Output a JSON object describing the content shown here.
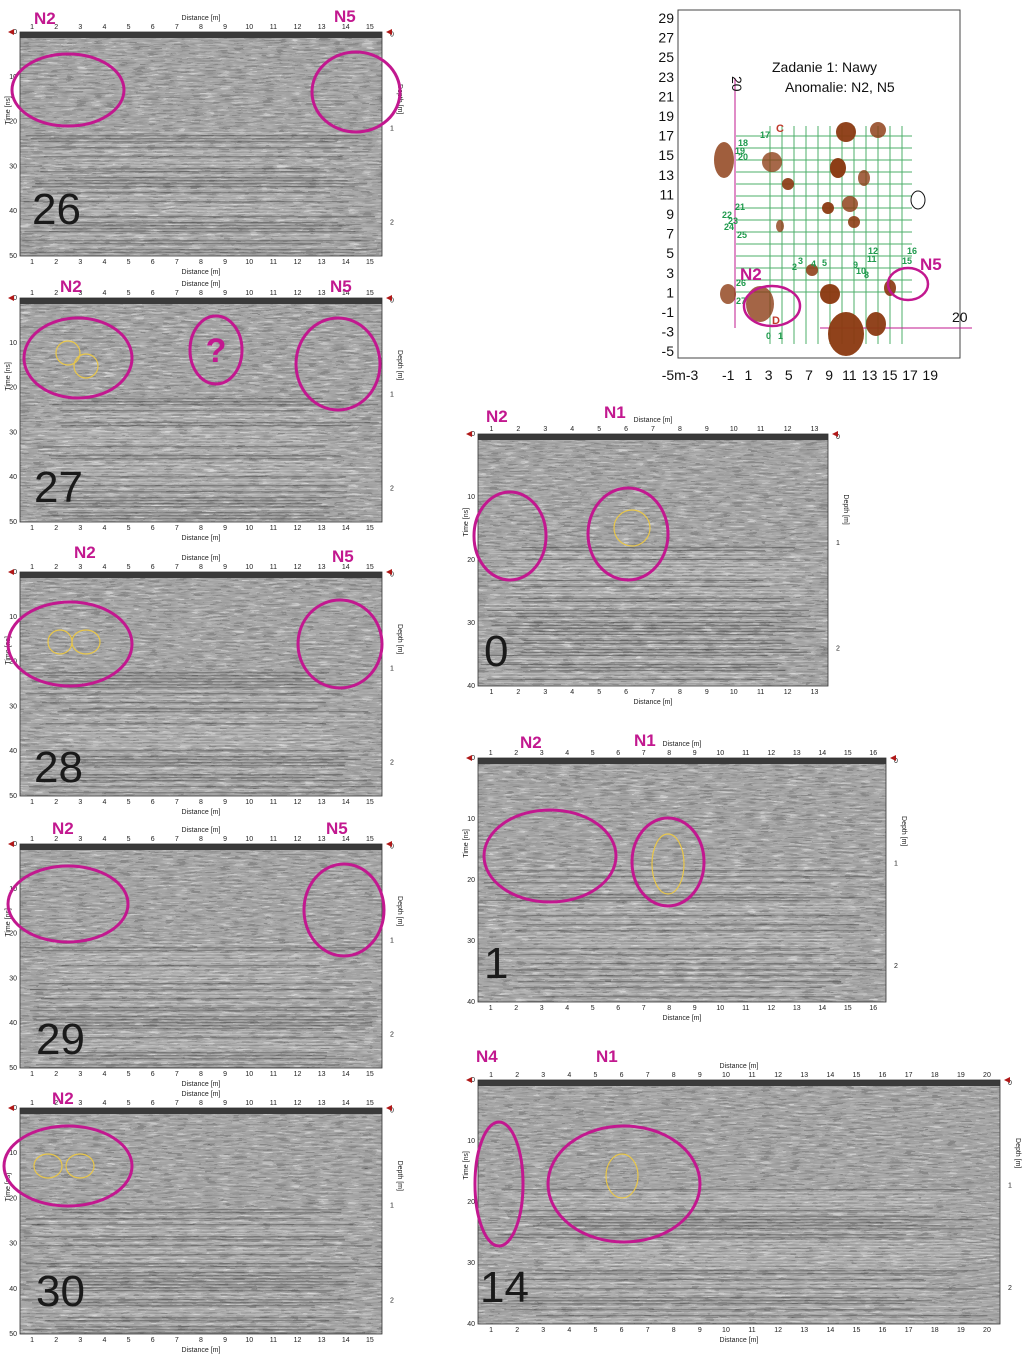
{
  "colors": {
    "anomaly": "#c2188f",
    "target": "#e8c64a",
    "grid": "#4caf6a",
    "object": "#8b3a12"
  },
  "profiles": [
    {
      "id": "p26",
      "number": "26",
      "tags": [
        "N2",
        "N5"
      ],
      "xticks": [
        "1",
        "2",
        "3",
        "4",
        "5",
        "6",
        "7",
        "8",
        "9",
        "10",
        "11",
        "12",
        "13",
        "14",
        "15"
      ],
      "yticks": [
        "0",
        "10",
        "20",
        "30",
        "40",
        "50"
      ],
      "dticks": [
        "0",
        "1",
        "2"
      ],
      "question": ""
    },
    {
      "id": "p27",
      "number": "27",
      "tags": [
        "N2",
        "N5"
      ],
      "xticks": [
        "1",
        "2",
        "3",
        "4",
        "5",
        "6",
        "7",
        "8",
        "9",
        "10",
        "11",
        "12",
        "13",
        "14",
        "15"
      ],
      "yticks": [
        "0",
        "10",
        "20",
        "30",
        "40",
        "50"
      ],
      "dticks": [
        "0",
        "1",
        "2"
      ],
      "question": "?"
    },
    {
      "id": "p28",
      "number": "28",
      "tags": [
        "N2",
        "N5"
      ],
      "xticks": [
        "1",
        "2",
        "3",
        "4",
        "5",
        "6",
        "7",
        "8",
        "9",
        "10",
        "11",
        "12",
        "13",
        "14",
        "15"
      ],
      "yticks": [
        "0",
        "10",
        "20",
        "30",
        "40",
        "50"
      ],
      "dticks": [
        "0",
        "1",
        "2"
      ],
      "question": ""
    },
    {
      "id": "p29",
      "number": "29",
      "tags": [
        "N2",
        "N5"
      ],
      "xticks": [
        "1",
        "2",
        "3",
        "4",
        "5",
        "6",
        "7",
        "8",
        "9",
        "10",
        "11",
        "12",
        "13",
        "14",
        "15"
      ],
      "yticks": [
        "0",
        "10",
        "20",
        "30",
        "40",
        "50"
      ],
      "dticks": [
        "0",
        "1",
        "2"
      ],
      "question": ""
    },
    {
      "id": "p30",
      "number": "30",
      "tags": [
        "N2"
      ],
      "xticks": [
        "1",
        "2",
        "3",
        "4",
        "5",
        "6",
        "7",
        "8",
        "9",
        "10",
        "11",
        "12",
        "13",
        "14",
        "15"
      ],
      "yticks": [
        "0",
        "10",
        "20",
        "30",
        "40",
        "50"
      ],
      "dticks": [
        "0",
        "1",
        "2"
      ],
      "question": ""
    },
    {
      "id": "p0",
      "number": "0",
      "tags": [
        "N2",
        "N1"
      ],
      "xticks": [
        "1",
        "2",
        "3",
        "4",
        "5",
        "6",
        "7",
        "8",
        "9",
        "10",
        "11",
        "12",
        "13"
      ],
      "yticks": [
        "0",
        "10",
        "20",
        "30",
        "40"
      ],
      "dticks": [
        "0",
        "1",
        "2"
      ],
      "question": ""
    },
    {
      "id": "p1",
      "number": "1",
      "tags": [
        "N2",
        "N1"
      ],
      "xticks": [
        "1",
        "2",
        "3",
        "4",
        "5",
        "6",
        "7",
        "8",
        "9",
        "10",
        "11",
        "12",
        "13",
        "14",
        "15",
        "16"
      ],
      "yticks": [
        "0",
        "10",
        "20",
        "30",
        "40"
      ],
      "dticks": [
        "0",
        "1",
        "2"
      ],
      "question": ""
    },
    {
      "id": "p14",
      "number": "14",
      "tags": [
        "N4",
        "N1"
      ],
      "xticks": [
        "1",
        "2",
        "3",
        "4",
        "5",
        "6",
        "7",
        "8",
        "9",
        "10",
        "11",
        "12",
        "13",
        "14",
        "15",
        "16",
        "17",
        "18",
        "19",
        "20"
      ],
      "yticks": [
        "0",
        "10",
        "20",
        "30",
        "40"
      ],
      "dticks": [
        "0",
        "1",
        "2"
      ],
      "question": ""
    }
  ],
  "axes": {
    "distance": "Distance [m]",
    "time": "Time [ns]",
    "depth": "Depth [m]"
  },
  "map": {
    "title": "Zadanie 1: Nawy",
    "subtitle": "Anomalie: N2, N5",
    "yticks": [
      "29",
      "27",
      "25",
      "23",
      "21",
      "19",
      "17",
      "15",
      "13",
      "11",
      "9",
      "7",
      "5",
      "3",
      "1",
      "-1",
      "-3",
      "-5"
    ],
    "xticks": [
      "-5m-3",
      "-1",
      "1",
      "3",
      "5",
      "7",
      "9",
      "11",
      "13",
      "15",
      "17",
      "19"
    ],
    "labels": [
      "N2",
      "N5"
    ],
    "line_numbers": [
      "17",
      "18",
      "19",
      "20",
      "21",
      "22",
      "23",
      "24",
      "25",
      "2",
      "3",
      "4",
      "5",
      "8",
      "9",
      "10",
      "11",
      "12",
      "15",
      "16",
      "0",
      "1",
      "26",
      "27"
    ],
    "markers": [
      "C",
      "D"
    ],
    "ruler": [
      "20",
      "20"
    ]
  }
}
